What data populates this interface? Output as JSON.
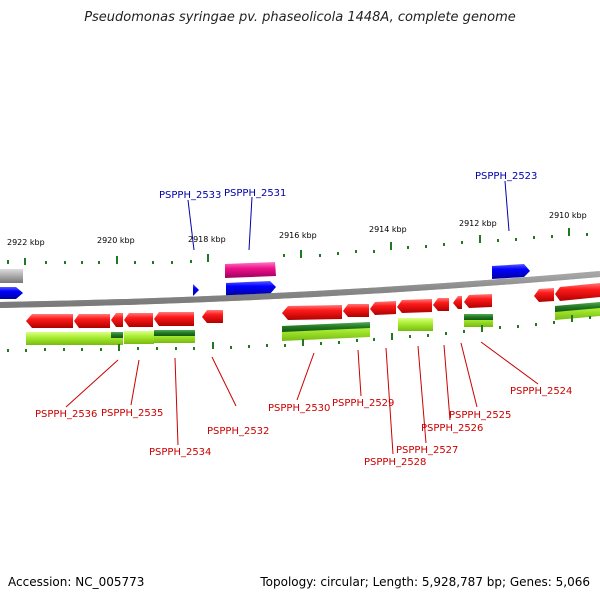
{
  "title": "Pseudomonas syringae pv. phaseolicola 1448A, complete genome",
  "accession": "Accession: NC_005773",
  "summary": "Topology: circular; Length: 5,928,787 bp; Genes: 5,066",
  "colors": {
    "backbone": "#808080",
    "forward_gene": "#0000ee",
    "reverse_gene": "#ee0000",
    "pseudo_gene": "#ee1188",
    "rna": "#99dd33",
    "misc": "#227722",
    "label_forward": "#0000aa",
    "label_reverse": "#cc0000",
    "tick": "#227722"
  },
  "kbp_ticks": [
    "2922 kbp",
    "2920 kbp",
    "2918 kbp",
    "2916 kbp",
    "2914 kbp",
    "2912 kbp",
    "2910 kbp"
  ],
  "genes_top": [
    "PSPPH_2533",
    "PSPPH_2531",
    "PSPPH_2523"
  ],
  "genes_bottom": [
    "PSPPH_2536",
    "PSPPH_2535",
    "PSPPH_2534",
    "PSPPH_2532",
    "PSPPH_2530",
    "PSPPH_2529",
    "PSPPH_2528",
    "PSPPH_2527",
    "PSPPH_2526",
    "PSPPH_2525",
    "PSPPH_2524"
  ]
}
